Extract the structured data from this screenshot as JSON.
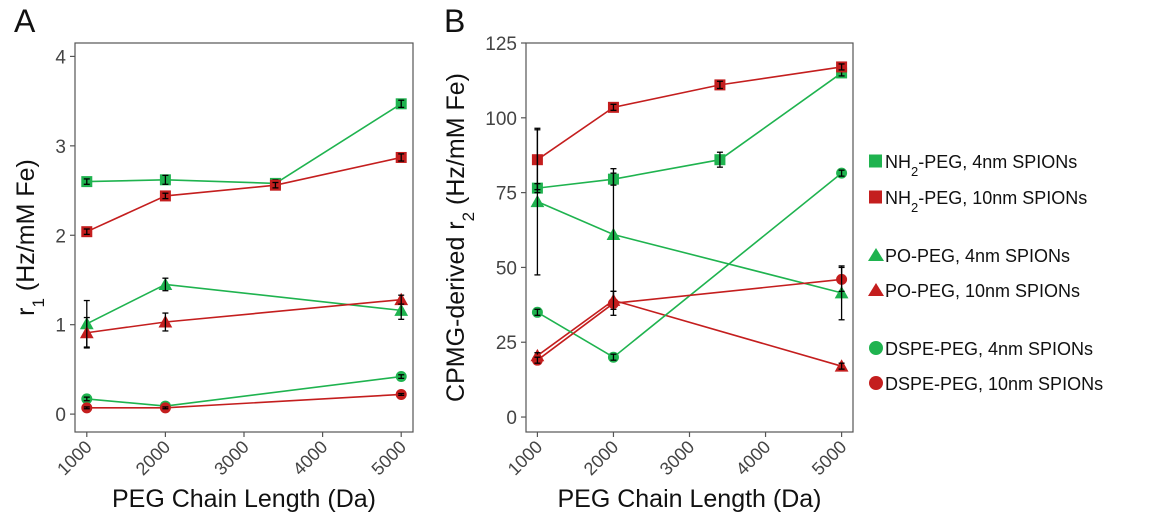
{
  "panels": {
    "a_label": "A",
    "b_label": "B"
  },
  "colors": {
    "green": "#1fb34f",
    "red": "#c41e1e",
    "axis": "#444444",
    "error_bar": "#000000"
  },
  "legend": {
    "items": [
      {
        "marker": "square",
        "color": "#1fb34f",
        "prefix": "NH",
        "sub": "2",
        "suffix": "-PEG, 4nm SPIONs"
      },
      {
        "marker": "square",
        "color": "#c41e1e",
        "prefix": "NH",
        "sub": "2",
        "suffix": "-PEG, 10nm SPIONs"
      },
      {
        "marker": "triangle",
        "color": "#1fb34f",
        "prefix": "PO-PEG, 4nm SPIONs",
        "sub": "",
        "suffix": ""
      },
      {
        "marker": "triangle",
        "color": "#c41e1e",
        "prefix": "PO-PEG, 10nm SPIONs",
        "sub": "",
        "suffix": ""
      },
      {
        "marker": "circle",
        "color": "#1fb34f",
        "prefix": "DSPE-PEG, 4nm SPIONs",
        "sub": "",
        "suffix": ""
      },
      {
        "marker": "circle",
        "color": "#c41e1e",
        "prefix": "DSPE-PEG, 10nm SPIONs",
        "sub": "",
        "suffix": ""
      }
    ]
  },
  "chart_data": [
    {
      "type": "line",
      "panel": "A",
      "xlabel": "PEG Chain Length (Da)",
      "ylabel_main": "r",
      "ylabel_sub": "1",
      "ylabel_rest": " (Hz/mM Fe)",
      "xlim": [
        850,
        5150
      ],
      "ylim": [
        -0.2,
        4.15
      ],
      "xticks": [
        1000,
        2000,
        3000,
        4000,
        5000
      ],
      "yticks": [
        0,
        1,
        2,
        3,
        4
      ],
      "grid": false,
      "series": [
        {
          "marker": "square",
          "color": "#1fb34f",
          "points": [
            [
              1000,
              2.6,
              0.03
            ],
            [
              2000,
              2.62,
              0.05
            ],
            [
              3400,
              2.58,
              0.04
            ],
            [
              5000,
              3.47,
              0.04
            ]
          ]
        },
        {
          "marker": "square",
          "color": "#c41e1e",
          "points": [
            [
              1000,
              2.04,
              0.03
            ],
            [
              2000,
              2.44,
              0.03
            ],
            [
              3400,
              2.56,
              0.03
            ],
            [
              5000,
              2.87,
              0.04
            ]
          ]
        },
        {
          "marker": "triangle",
          "color": "#1fb34f",
          "points": [
            [
              1000,
              1.01,
              0.26
            ],
            [
              2000,
              1.45,
              0.07
            ],
            [
              5000,
              1.16,
              0.1
            ]
          ]
        },
        {
          "marker": "triangle",
          "color": "#c41e1e",
          "points": [
            [
              1000,
              0.91,
              0.17
            ],
            [
              2000,
              1.03,
              0.1
            ],
            [
              5000,
              1.28,
              0.05
            ]
          ]
        },
        {
          "marker": "circle",
          "color": "#1fb34f",
          "points": [
            [
              1000,
              0.17,
              0.02
            ],
            [
              2000,
              0.09,
              0.02
            ],
            [
              5000,
              0.42,
              0.02
            ]
          ]
        },
        {
          "marker": "circle",
          "color": "#c41e1e",
          "points": [
            [
              1000,
              0.07,
              0.01
            ],
            [
              2000,
              0.07,
              0.01
            ],
            [
              5000,
              0.22,
              0.01
            ]
          ]
        }
      ]
    },
    {
      "type": "line",
      "panel": "B",
      "xlabel": "PEG Chain Length (Da)",
      "ylabel_main": "CPMG-derived r",
      "ylabel_sub": "2",
      "ylabel_rest": " (Hz/mM Fe)",
      "xlim": [
        850,
        5150
      ],
      "ylim": [
        -5,
        125
      ],
      "xticks": [
        1000,
        2000,
        3000,
        4000,
        5000
      ],
      "yticks": [
        0,
        25,
        50,
        75,
        100,
        125
      ],
      "grid": false,
      "series": [
        {
          "marker": "square",
          "color": "#1fb34f",
          "points": [
            [
              1000,
              76.5,
              1.5
            ],
            [
              2000,
              79.5,
              2
            ],
            [
              3400,
              86,
              2.5
            ],
            [
              5000,
              115,
              1
            ]
          ]
        },
        {
          "marker": "square",
          "color": "#c41e1e",
          "points": [
            [
              1000,
              86,
              10
            ],
            [
              2000,
              103.5,
              1
            ],
            [
              3400,
              111,
              1.2
            ],
            [
              5000,
              117,
              1
            ]
          ]
        },
        {
          "marker": "triangle",
          "color": "#1fb34f",
          "points": [
            [
              1000,
              72,
              24.5
            ],
            [
              2000,
              61,
              22
            ],
            [
              5000,
              41.5,
              9
            ]
          ]
        },
        {
          "marker": "triangle",
          "color": "#c41e1e",
          "points": [
            [
              1000,
              20.5,
              1
            ],
            [
              2000,
              39,
              3
            ],
            [
              5000,
              17,
              1
            ]
          ]
        },
        {
          "marker": "circle",
          "color": "#1fb34f",
          "points": [
            [
              1000,
              35,
              1
            ],
            [
              2000,
              20,
              1
            ],
            [
              5000,
              81.5,
              1
            ]
          ]
        },
        {
          "marker": "circle",
          "color": "#c41e1e",
          "points": [
            [
              1000,
              19,
              1
            ],
            [
              2000,
              38,
              4
            ],
            [
              5000,
              46,
              4
            ]
          ]
        }
      ]
    }
  ]
}
